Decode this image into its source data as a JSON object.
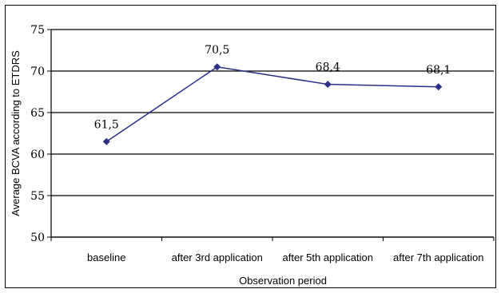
{
  "chart_data": {
    "type": "line",
    "title": "",
    "xlabel": "Observation period",
    "ylabel": "Average BCVA according to ETDRS",
    "categories": [
      "baseline",
      "after 3rd application",
      "after 5th application",
      "after 7th application"
    ],
    "series": [
      {
        "values": [
          61.5,
          70.5,
          68.4,
          68.1
        ]
      }
    ],
    "data_labels": [
      "61,5",
      "70,5",
      "68,4",
      "68,1"
    ],
    "yticks": [
      50,
      55,
      60,
      65,
      70,
      75
    ],
    "ylim": [
      50,
      75
    ],
    "grid": "horizontal major gridlines",
    "legend": "none",
    "colors": {
      "series": "#2b2f86",
      "grid": "#000000"
    }
  }
}
